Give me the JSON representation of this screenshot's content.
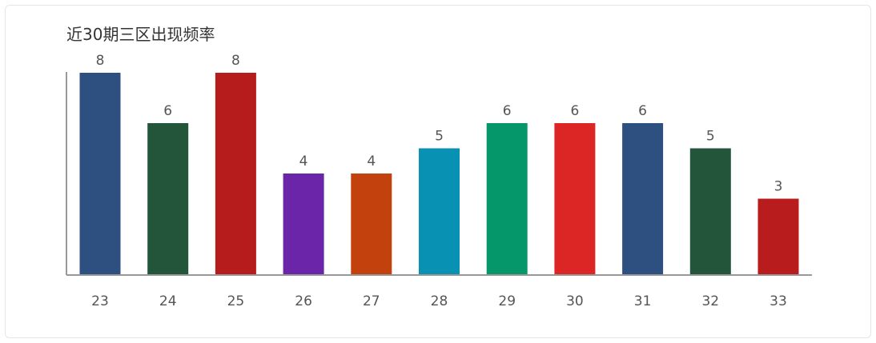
{
  "chart_data": {
    "type": "bar",
    "title": "近30期三区出现频率",
    "xlabel": "",
    "ylabel": "",
    "categories": [
      "23",
      "24",
      "25",
      "26",
      "27",
      "28",
      "29",
      "30",
      "31",
      "32",
      "33"
    ],
    "values": [
      8,
      6,
      8,
      4,
      4,
      5,
      6,
      6,
      6,
      5,
      3
    ],
    "colors": [
      "#2e5080",
      "#23553b",
      "#b71c1c",
      "#6a25a8",
      "#c2410c",
      "#0891b2",
      "#059669",
      "#dc2626",
      "#2e5080",
      "#23553b",
      "#b91c1c"
    ],
    "ylim": [
      0,
      8
    ],
    "grid": false,
    "legend": "none",
    "data_labels": true
  }
}
